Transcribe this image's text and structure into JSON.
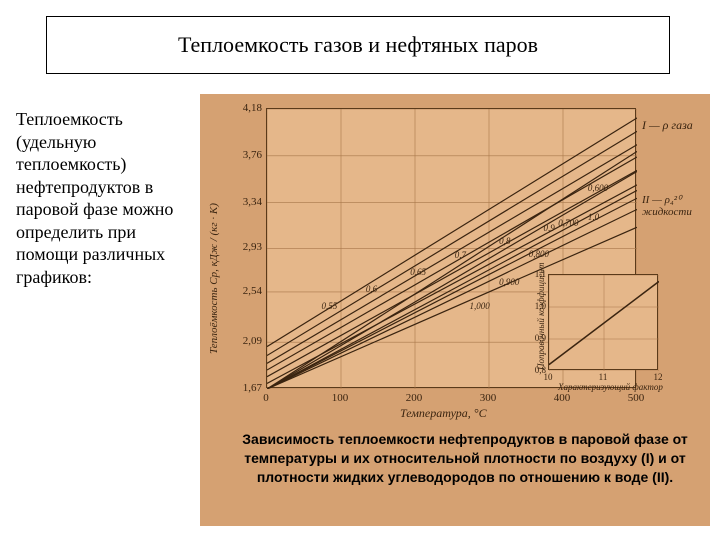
{
  "title": "Теплоемкость газов и нефтяных паров",
  "sidebar_text": "Теплоемкость (удельную теплоемкость) нефтепродуктов в паровой фазе можно определить при помощи различных графиков:",
  "main_chart": {
    "type": "line",
    "x_label": "Температура, °C",
    "y_label": "Теплоёмкость Cp, кДж / (кг · K)",
    "xlim": [
      0,
      500
    ],
    "ylim": [
      1.67,
      4.18
    ],
    "x_ticks": [
      0,
      100,
      200,
      300,
      400,
      500
    ],
    "y_ticks": [
      1.67,
      2.09,
      2.54,
      2.93,
      3.34,
      3.76,
      4.18
    ],
    "grid_color": "#a8774a",
    "background_color": "#e5b78a",
    "line_color": "#3a2410",
    "line_width": 1.2,
    "series_group_I": {
      "annotation": "I — ρ газа",
      "lines": [
        {
          "label": "0,55",
          "y0": 2.05,
          "y500": 4.1
        },
        {
          "label": "0,6",
          "y0": 1.97,
          "y500": 3.98
        },
        {
          "label": "0,65",
          "y0": 1.9,
          "y500": 3.86
        },
        {
          "label": "0,7",
          "y0": 1.84,
          "y500": 3.75
        },
        {
          "label": "0,8",
          "y0": 1.78,
          "y500": 3.63
        },
        {
          "label": "0,9",
          "y0": 1.72,
          "y500": 3.5
        },
        {
          "label": "1,0",
          "y0": 1.67,
          "y500": 3.38
        }
      ]
    },
    "series_group_II": {
      "annotation": "II — ρ₄²⁰ жидкости",
      "lines": [
        {
          "label": "1,000",
          "y0": 1.67,
          "y500": 3.12
        },
        {
          "label": "0,900",
          "y0": 1.67,
          "y500": 3.28
        },
        {
          "label": "0,800",
          "y0": 1.67,
          "y500": 3.45
        },
        {
          "label": "0,700",
          "y0": 1.67,
          "y500": 3.62
        },
        {
          "label": "0,600",
          "y0": 1.67,
          "y500": 3.8
        }
      ]
    }
  },
  "inset_chart": {
    "type": "line",
    "x_label": "Характеризующий фактор",
    "y_label": "Поправочный коэффициент",
    "x_ticks": [
      10,
      11,
      12
    ],
    "y_ticks": [
      0.8,
      0.9,
      1.0,
      1.1
    ],
    "xlim": [
      10,
      12
    ],
    "ylim": [
      0.8,
      1.1
    ],
    "line": {
      "x0": 10,
      "y0": 0.82,
      "x1": 12,
      "y1": 1.08
    },
    "grid_color": "#a8774a",
    "line_color": "#3a2410",
    "background_color": "#e5b78a"
  },
  "caption": "Зависимость теплоемкости нефтепродуктов в паровой фазе от температуры и их относительной плотности по воздуху (I) и от плотности жидких углеводородов по отношению к воде (II).",
  "colors": {
    "panel_bg": "#d5a172",
    "chart_bg": "#e5b78a",
    "ink": "#3a2410",
    "page_bg": "#ffffff"
  }
}
